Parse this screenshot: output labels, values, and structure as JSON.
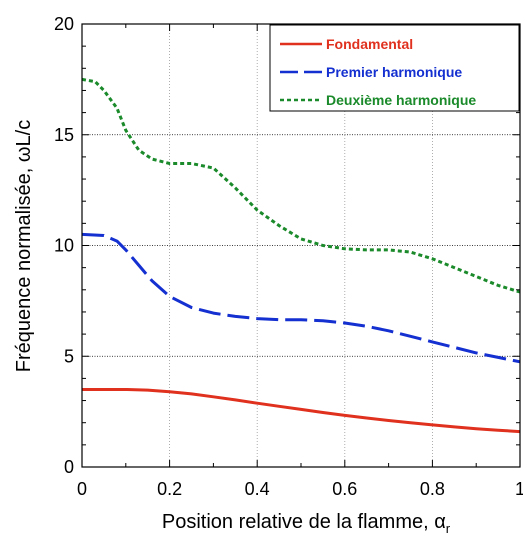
{
  "chart_data": {
    "type": "line",
    "title": "",
    "xlabel": "Position relative de la flamme, α",
    "xlabel_subscript": "r",
    "ylabel": "Fréquence normalisée, ωL/c",
    "xlim": [
      0,
      1
    ],
    "ylim": [
      0,
      20
    ],
    "x_ticks": [
      0,
      0.2,
      0.4,
      0.6,
      0.8,
      1
    ],
    "x_tick_labels": [
      "0",
      "0.2",
      "0.4",
      "0.6",
      "0.8",
      "1"
    ],
    "y_ticks": [
      0,
      5,
      10,
      15,
      20
    ],
    "y_tick_labels": [
      "0",
      "5",
      "10",
      "15",
      "20"
    ],
    "grid": true,
    "legend_position": "top-right",
    "series": [
      {
        "name": "Fondamental",
        "color": "#e0301e",
        "dash": "solid",
        "x": [
          0.0,
          0.05,
          0.1,
          0.15,
          0.2,
          0.25,
          0.3,
          0.35,
          0.4,
          0.45,
          0.5,
          0.55,
          0.6,
          0.65,
          0.7,
          0.75,
          0.8,
          0.85,
          0.9,
          0.95,
          1.0
        ],
        "y": [
          3.5,
          3.5,
          3.5,
          3.47,
          3.4,
          3.3,
          3.17,
          3.03,
          2.88,
          2.74,
          2.6,
          2.46,
          2.33,
          2.21,
          2.1,
          2.0,
          1.9,
          1.81,
          1.73,
          1.66,
          1.6
        ]
      },
      {
        "name": "Premier harmonique",
        "color": "#1530d0",
        "dash": "long-dash",
        "x": [
          0.0,
          0.05,
          0.08,
          0.1,
          0.13,
          0.16,
          0.2,
          0.25,
          0.3,
          0.35,
          0.4,
          0.45,
          0.5,
          0.55,
          0.6,
          0.65,
          0.7,
          0.75,
          0.8,
          0.85,
          0.9,
          0.95,
          1.0
        ],
        "y": [
          10.5,
          10.45,
          10.2,
          9.8,
          9.1,
          8.4,
          7.7,
          7.2,
          6.95,
          6.8,
          6.7,
          6.65,
          6.65,
          6.6,
          6.5,
          6.35,
          6.15,
          5.9,
          5.65,
          5.4,
          5.15,
          4.95,
          4.75
        ]
      },
      {
        "name": "Deuxième harmonique",
        "color": "#1a8a2a",
        "dash": "short-dash",
        "x": [
          0.0,
          0.03,
          0.05,
          0.08,
          0.1,
          0.13,
          0.16,
          0.2,
          0.25,
          0.3,
          0.35,
          0.4,
          0.45,
          0.5,
          0.55,
          0.6,
          0.65,
          0.7,
          0.75,
          0.8,
          0.85,
          0.9,
          0.95,
          1.0
        ],
        "y": [
          17.5,
          17.4,
          17.0,
          16.2,
          15.2,
          14.3,
          13.9,
          13.7,
          13.7,
          13.5,
          12.6,
          11.6,
          10.9,
          10.3,
          10.0,
          9.85,
          9.8,
          9.8,
          9.7,
          9.4,
          9.0,
          8.6,
          8.2,
          7.9
        ]
      }
    ]
  }
}
